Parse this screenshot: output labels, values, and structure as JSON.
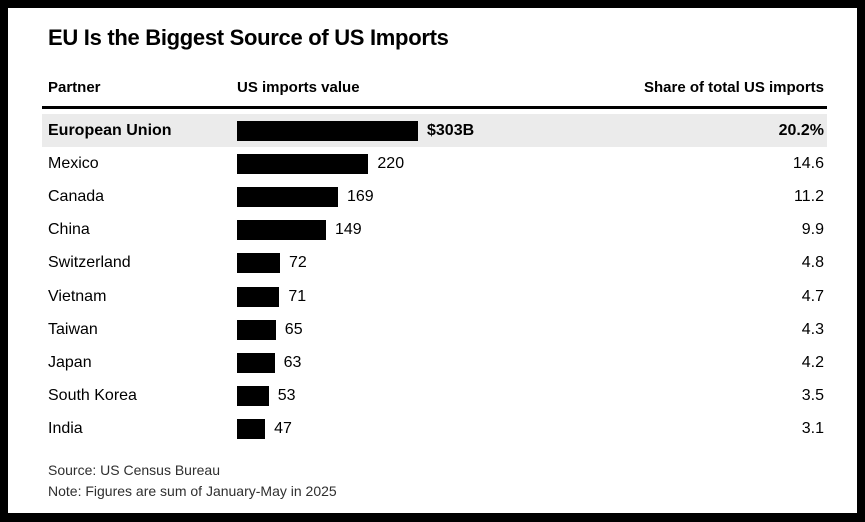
{
  "title": "EU Is the Biggest Source of US Imports",
  "table": {
    "columns": [
      "Partner",
      "US imports value",
      "Share of total US imports"
    ],
    "max_value": 303,
    "rows": [
      {
        "partner": "European Union",
        "value": 303,
        "value_label": "$303B",
        "share_label": "20.2%",
        "highlight": true
      },
      {
        "partner": "Mexico",
        "value": 220,
        "value_label": "220",
        "share_label": "14.6",
        "highlight": false
      },
      {
        "partner": "Canada",
        "value": 169,
        "value_label": "169",
        "share_label": "11.2",
        "highlight": false
      },
      {
        "partner": "China",
        "value": 149,
        "value_label": "149",
        "share_label": "9.9",
        "highlight": false
      },
      {
        "partner": "Switzerland",
        "value": 72,
        "value_label": "72",
        "share_label": "4.8",
        "highlight": false
      },
      {
        "partner": "Vietnam",
        "value": 71,
        "value_label": "71",
        "share_label": "4.7",
        "highlight": false
      },
      {
        "partner": "Taiwan",
        "value": 65,
        "value_label": "65",
        "share_label": "4.3",
        "highlight": false
      },
      {
        "partner": "Japan",
        "value": 63,
        "value_label": "63",
        "share_label": "4.2",
        "highlight": false
      },
      {
        "partner": "South Korea",
        "value": 53,
        "value_label": "53",
        "share_label": "3.5",
        "highlight": false
      },
      {
        "partner": "India",
        "value": 47,
        "value_label": "47",
        "share_label": "3.1",
        "highlight": false
      }
    ]
  },
  "footer": {
    "source": "Source: US Census Bureau",
    "note": "Note: Figures are sum of January-May in 2025"
  },
  "colors": {
    "bar": "#000000",
    "highlight_row": "#ebebeb",
    "frame": "#000000",
    "panel": "#ffffff",
    "text": "#000000",
    "footer_text": "#2f2f2f"
  },
  "chart_data": {
    "type": "bar",
    "orientation": "horizontal",
    "title": "EU Is the Biggest Source of US Imports",
    "categories": [
      "European Union",
      "Mexico",
      "Canada",
      "China",
      "Switzerland",
      "Vietnam",
      "Taiwan",
      "Japan",
      "South Korea",
      "India"
    ],
    "series": [
      {
        "name": "US imports value ($B)",
        "values": [
          303,
          220,
          169,
          149,
          72,
          71,
          65,
          63,
          53,
          47
        ]
      },
      {
        "name": "Share of total US imports (%)",
        "values": [
          20.2,
          14.6,
          11.2,
          9.9,
          4.8,
          4.7,
          4.3,
          4.2,
          3.5,
          3.1
        ]
      }
    ],
    "xlabel": "US imports value",
    "ylabel": "Partner",
    "xlim": [
      0,
      303
    ],
    "grid": false,
    "legend_position": "none",
    "source": "US Census Bureau",
    "note": "Figures are sum of January-May in 2025",
    "highlighted_category": "European Union"
  }
}
